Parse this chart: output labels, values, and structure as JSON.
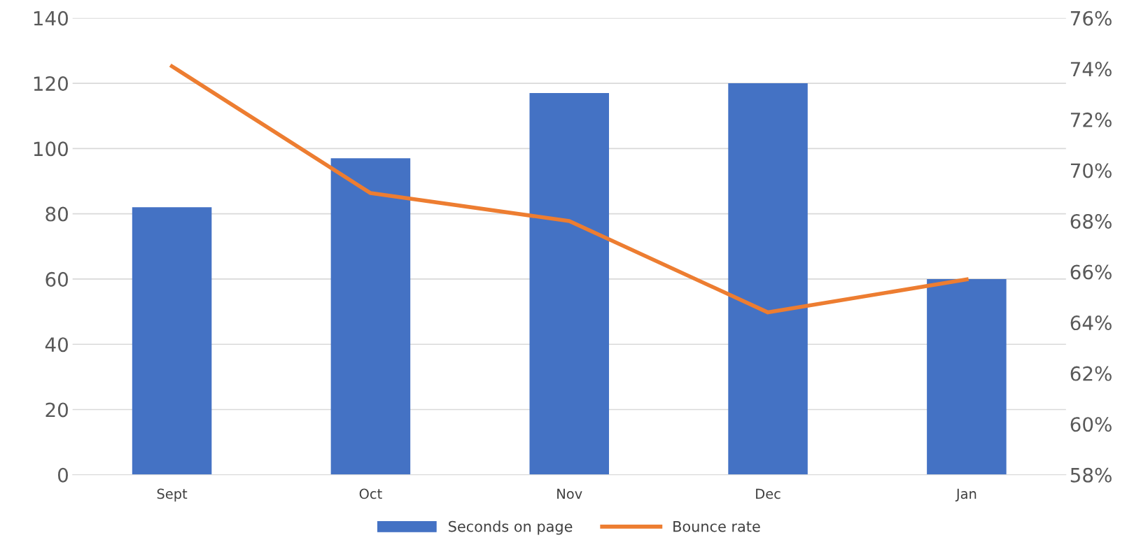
{
  "chart_data": {
    "type": "bar",
    "categories": [
      "Sept",
      "Oct",
      "Nov",
      "Dec",
      "Jan"
    ],
    "series": [
      {
        "name": "Seconds on page",
        "color": "#4472c4",
        "values": [
          82,
          97,
          117,
          120,
          60
        ]
      },
      {
        "name": "Bounce rate",
        "type": "line",
        "axis": "y2",
        "color": "#ed7d31",
        "values": [
          74.1,
          69.1,
          68.0,
          64.4,
          65.7
        ]
      }
    ],
    "ylim": [
      0,
      140
    ],
    "yticks": [
      0,
      20,
      40,
      60,
      80,
      100,
      120,
      140
    ],
    "y2lim": [
      58,
      76
    ],
    "y2ticks": [
      {
        "value": 58,
        "label": "58%"
      },
      {
        "value": 60,
        "label": "60%"
      },
      {
        "value": 62,
        "label": "62%"
      },
      {
        "value": 64,
        "label": "64%"
      },
      {
        "value": 66,
        "label": "66%"
      },
      {
        "value": 68,
        "label": "68%"
      },
      {
        "value": 70,
        "label": "70%"
      },
      {
        "value": 72,
        "label": "72%"
      },
      {
        "value": 74,
        "label": "74%"
      },
      {
        "value": 76,
        "label": "76%"
      }
    ],
    "grid": "y",
    "legend": "bottom",
    "marker": "none",
    "line_style": "solid"
  }
}
